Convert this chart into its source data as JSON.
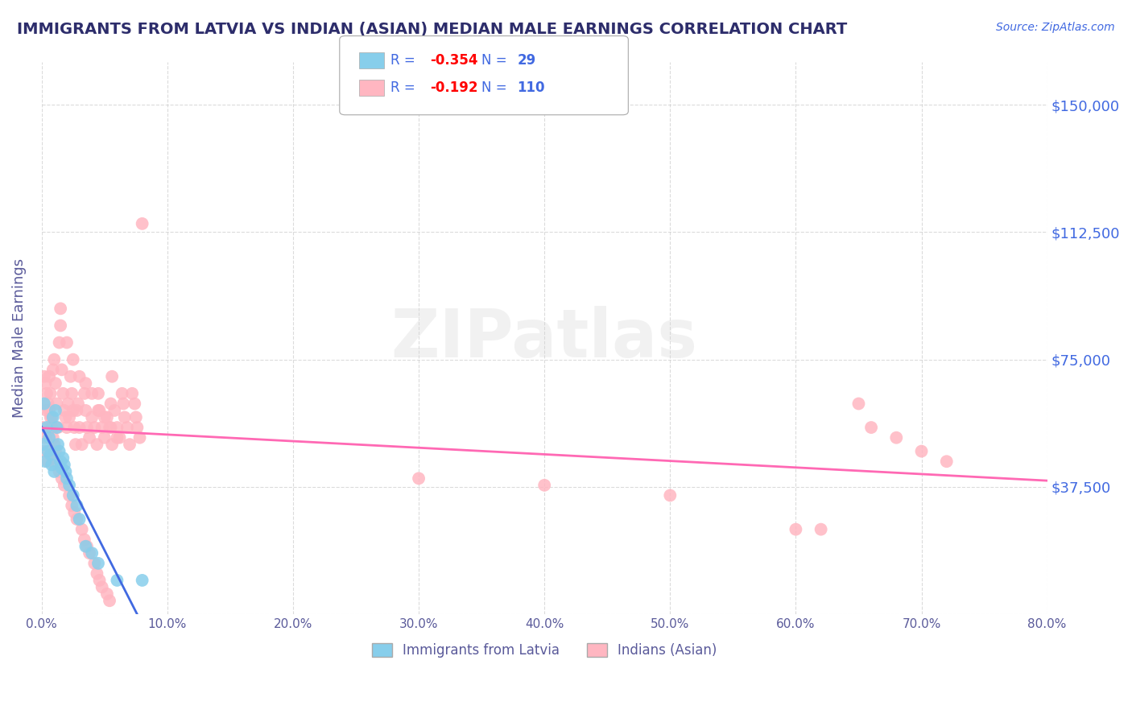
{
  "title": "IMMIGRANTS FROM LATVIA VS INDIAN (ASIAN) MEDIAN MALE EARNINGS CORRELATION CHART",
  "source_text": "Source: ZipAtlas.com",
  "ylabel": "Median Male Earnings",
  "xlim": [
    0.0,
    0.8
  ],
  "ylim": [
    0,
    162500
  ],
  "yticks": [
    0,
    37500,
    75000,
    112500,
    150000
  ],
  "ytick_labels": [
    "",
    "$37,500",
    "$75,000",
    "$112,500",
    "$150,000"
  ],
  "xticks": [
    0.0,
    0.1,
    0.2,
    0.3,
    0.4,
    0.5,
    0.6,
    0.7,
    0.8
  ],
  "xtick_labels": [
    "0.0%",
    "10.0%",
    "20.0%",
    "30.0%",
    "40.0%",
    "50.0%",
    "60.0%",
    "70.0%",
    "80.0%"
  ],
  "legend_R1": "-0.354",
  "legend_N1": "29",
  "legend_R2": "-0.192",
  "legend_N2": "110",
  "legend_label1": "Immigrants from Latvia",
  "legend_label2": "Indians (Asian)",
  "watermark": "ZIPatlas",
  "title_color": "#2d2d6b",
  "axis_label_color": "#5a5a9a",
  "tick_color": "#5a5a9a",
  "scatter_color_latvia": "#87CEEB",
  "scatter_color_indian": "#FFB6C1",
  "line_color_latvia": "#4169E1",
  "line_color_indian": "#FF69B4",
  "background_color": "#ffffff",
  "grid_color": "#cccccc",
  "latvia_x": [
    0.001,
    0.002,
    0.003,
    0.004,
    0.005,
    0.006,
    0.007,
    0.008,
    0.009,
    0.01,
    0.011,
    0.012,
    0.013,
    0.014,
    0.015,
    0.016,
    0.017,
    0.018,
    0.019,
    0.02,
    0.022,
    0.025,
    0.028,
    0.03,
    0.035,
    0.04,
    0.045,
    0.06,
    0.08
  ],
  "latvia_y": [
    50000,
    62000,
    45000,
    55000,
    48000,
    52000,
    47000,
    44000,
    58000,
    42000,
    60000,
    55000,
    50000,
    48000,
    45000,
    43000,
    46000,
    44000,
    42000,
    40000,
    38000,
    35000,
    32000,
    28000,
    20000,
    18000,
    15000,
    10000,
    10000
  ],
  "indian_x": [
    0.001,
    0.002,
    0.003,
    0.004,
    0.005,
    0.006,
    0.007,
    0.008,
    0.009,
    0.01,
    0.011,
    0.012,
    0.013,
    0.014,
    0.015,
    0.016,
    0.017,
    0.018,
    0.019,
    0.02,
    0.021,
    0.022,
    0.023,
    0.024,
    0.025,
    0.026,
    0.027,
    0.028,
    0.029,
    0.03,
    0.032,
    0.034,
    0.035,
    0.036,
    0.038,
    0.04,
    0.042,
    0.044,
    0.045,
    0.046,
    0.048,
    0.05,
    0.052,
    0.054,
    0.055,
    0.056,
    0.058,
    0.06,
    0.062,
    0.064,
    0.065,
    0.066,
    0.068,
    0.07,
    0.072,
    0.074,
    0.075,
    0.076,
    0.078,
    0.08,
    0.015,
    0.02,
    0.025,
    0.03,
    0.035,
    0.04,
    0.045,
    0.05,
    0.055,
    0.06,
    0.01,
    0.012,
    0.014,
    0.016,
    0.018,
    0.022,
    0.024,
    0.026,
    0.028,
    0.032,
    0.034,
    0.036,
    0.038,
    0.042,
    0.044,
    0.046,
    0.048,
    0.052,
    0.054,
    0.056,
    0.3,
    0.4,
    0.5,
    0.6,
    0.62,
    0.65,
    0.66,
    0.68,
    0.7,
    0.72,
    0.002,
    0.003,
    0.004,
    0.005,
    0.006,
    0.007,
    0.008,
    0.009,
    0.01,
    0.011
  ],
  "indian_y": [
    55000,
    48000,
    52000,
    60000,
    45000,
    70000,
    65000,
    58000,
    72000,
    75000,
    68000,
    62000,
    55000,
    80000,
    90000,
    72000,
    65000,
    60000,
    58000,
    55000,
    62000,
    58000,
    70000,
    65000,
    60000,
    55000,
    50000,
    60000,
    62000,
    55000,
    50000,
    65000,
    60000,
    55000,
    52000,
    58000,
    55000,
    50000,
    65000,
    60000,
    55000,
    52000,
    58000,
    55000,
    62000,
    50000,
    60000,
    55000,
    52000,
    65000,
    62000,
    58000,
    55000,
    50000,
    65000,
    62000,
    58000,
    55000,
    52000,
    115000,
    85000,
    80000,
    75000,
    70000,
    68000,
    65000,
    60000,
    58000,
    55000,
    52000,
    48000,
    45000,
    42000,
    40000,
    38000,
    35000,
    32000,
    30000,
    28000,
    25000,
    22000,
    20000,
    18000,
    15000,
    12000,
    10000,
    8000,
    6000,
    4000,
    70000,
    40000,
    38000,
    35000,
    25000,
    25000,
    62000,
    55000,
    52000,
    48000,
    45000,
    70000,
    68000,
    65000,
    62000,
    60000,
    58000,
    55000,
    52000,
    50000,
    48000
  ]
}
